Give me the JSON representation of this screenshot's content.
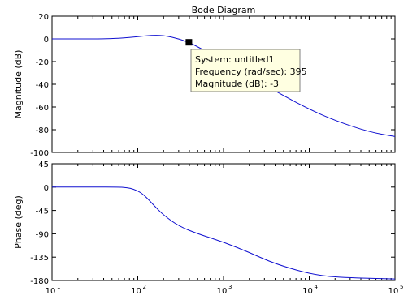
{
  "chart_data": {
    "type": "line",
    "title": "Bode Diagram",
    "grid": false,
    "x_scale": "log",
    "xlim": [
      10,
      100000
    ],
    "x_ticks": [
      {
        "base": "10",
        "exp": "1"
      },
      {
        "base": "10",
        "exp": "2"
      },
      {
        "base": "10",
        "exp": "3"
      },
      {
        "base": "10",
        "exp": "4"
      },
      {
        "base": "10",
        "exp": "5"
      }
    ],
    "panels": [
      {
        "id": "magnitude",
        "ylabel": "Magnitude (dB)",
        "ylim": [
          -100,
          20
        ],
        "y_ticks": [
          "20",
          "0",
          "-20",
          "-40",
          "-60",
          "-80",
          "-100"
        ],
        "x": [
          10,
          20,
          40,
          60,
          80,
          100,
          130,
          160,
          200,
          250,
          300,
          395,
          500,
          700,
          1000,
          2000,
          5000,
          10000,
          20000,
          50000,
          100000
        ],
        "y": [
          0,
          0,
          0,
          0.5,
          1.2,
          2,
          2.8,
          3.2,
          3.0,
          1.5,
          0,
          -3,
          -7,
          -13,
          -20,
          -33,
          -50,
          -62,
          -72,
          -82,
          -86
        ]
      },
      {
        "id": "phase",
        "ylabel": "Phase (deg)",
        "ylim": [
          -180,
          45
        ],
        "y_ticks": [
          "45",
          "0",
          "-45",
          "-90",
          "-135",
          "-180"
        ],
        "x": [
          10,
          30,
          60,
          75,
          90,
          110,
          130,
          160,
          200,
          300,
          500,
          1000,
          2000,
          4000,
          10000,
          20000,
          100000
        ],
        "y": [
          0,
          0,
          0,
          -1,
          -4,
          -11,
          -22,
          -38,
          -54,
          -75,
          -90,
          -106,
          -126,
          -148,
          -167,
          -174,
          -177
        ]
      }
    ],
    "datatip": {
      "x": 395,
      "y": -3,
      "lines": [
        "System: untitled1",
        "Frequency (rad/sec): 395",
        "Magnitude (dB): -3"
      ]
    }
  }
}
